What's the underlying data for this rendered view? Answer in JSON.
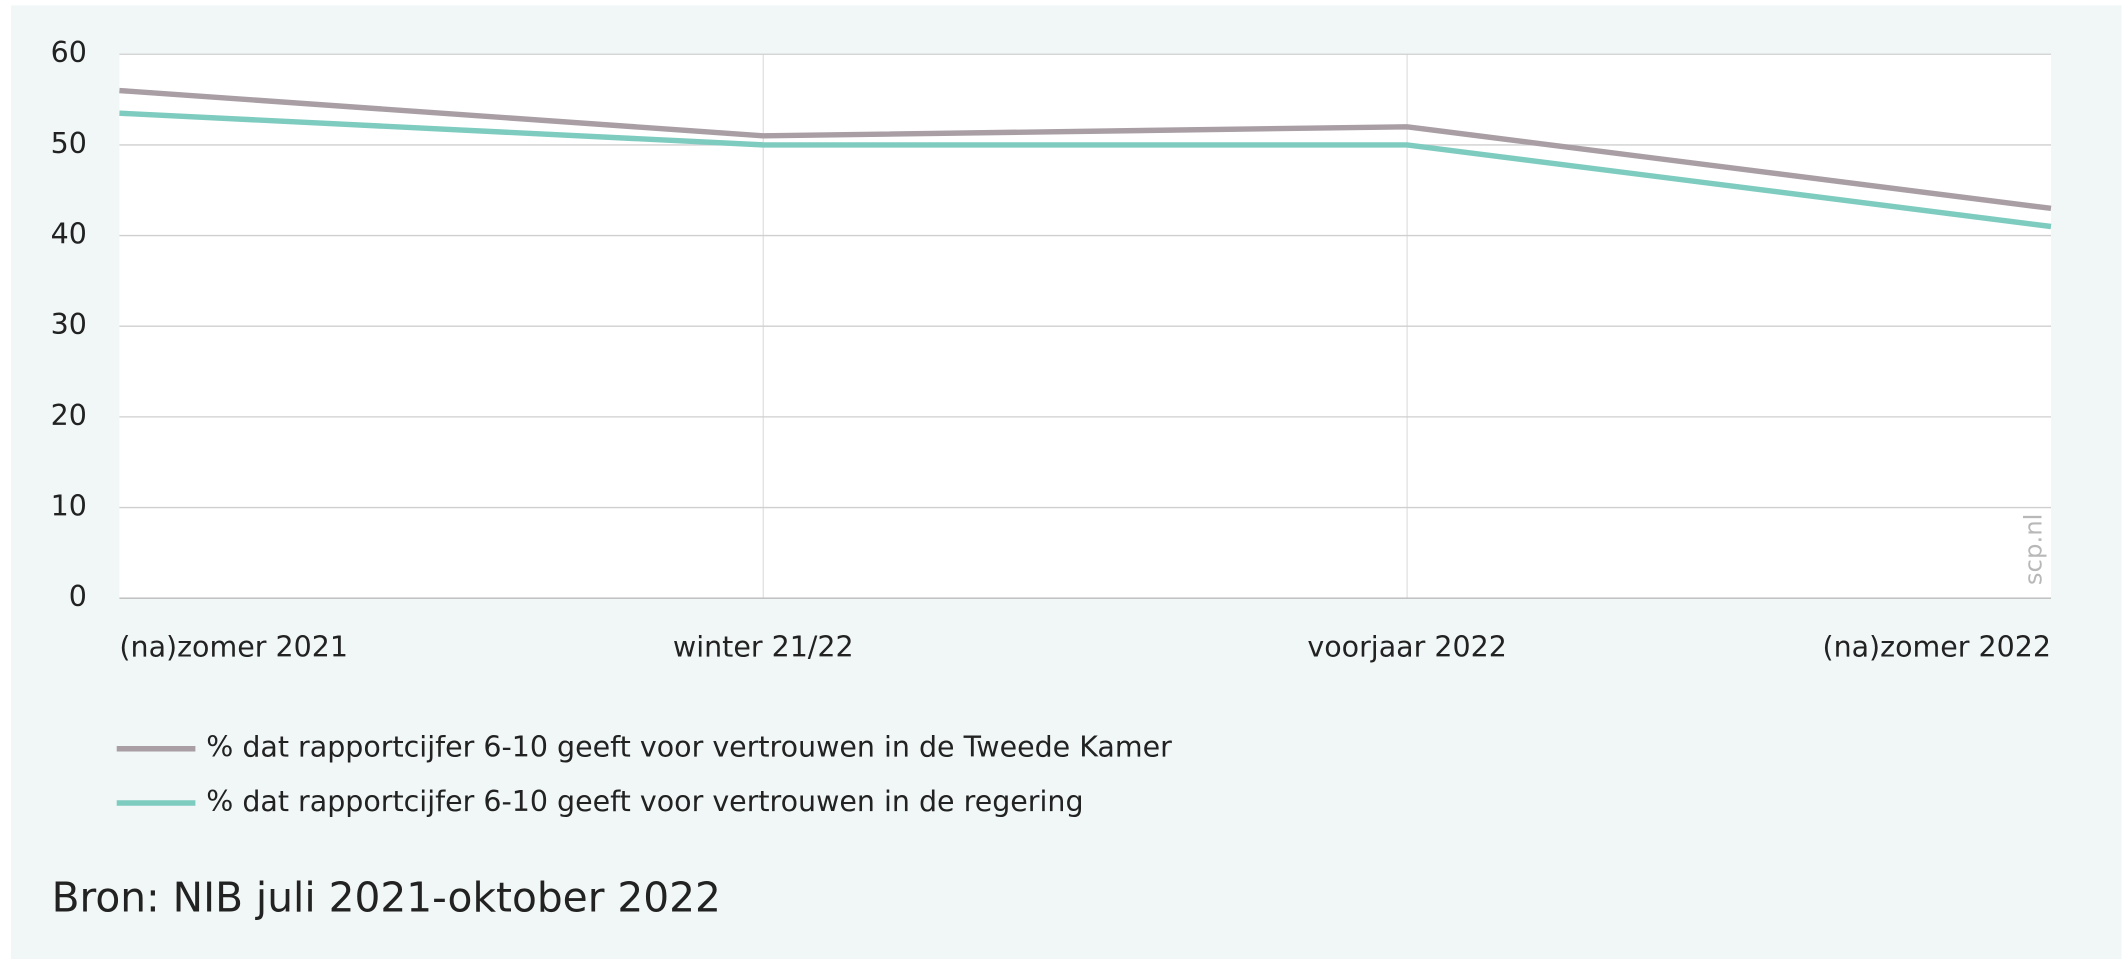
{
  "chart_data": {
    "type": "line",
    "categories": [
      "(na)zomer 2021",
      "winter 21/22",
      "voorjaar 2022",
      "(na)zomer 2022"
    ],
    "series": [
      {
        "name": "% dat rapportcijfer 6-10 geeft voor vertrouwen in de Tweede Kamer",
        "color": "#a89ea4",
        "values": [
          56,
          51,
          52,
          43
        ]
      },
      {
        "name": "% dat rapportcijfer 6-10 geeft voor vertrouwen in de regering",
        "color": "#7ecbc0",
        "values": [
          53.5,
          50,
          50,
          41
        ]
      }
    ],
    "ylim": [
      0,
      60
    ],
    "yticks": [
      0,
      10,
      20,
      30,
      40,
      50,
      60
    ],
    "grid": true,
    "watermark": "scp.nl",
    "source": "Bron: NIB juli 2021-oktober 2022"
  }
}
